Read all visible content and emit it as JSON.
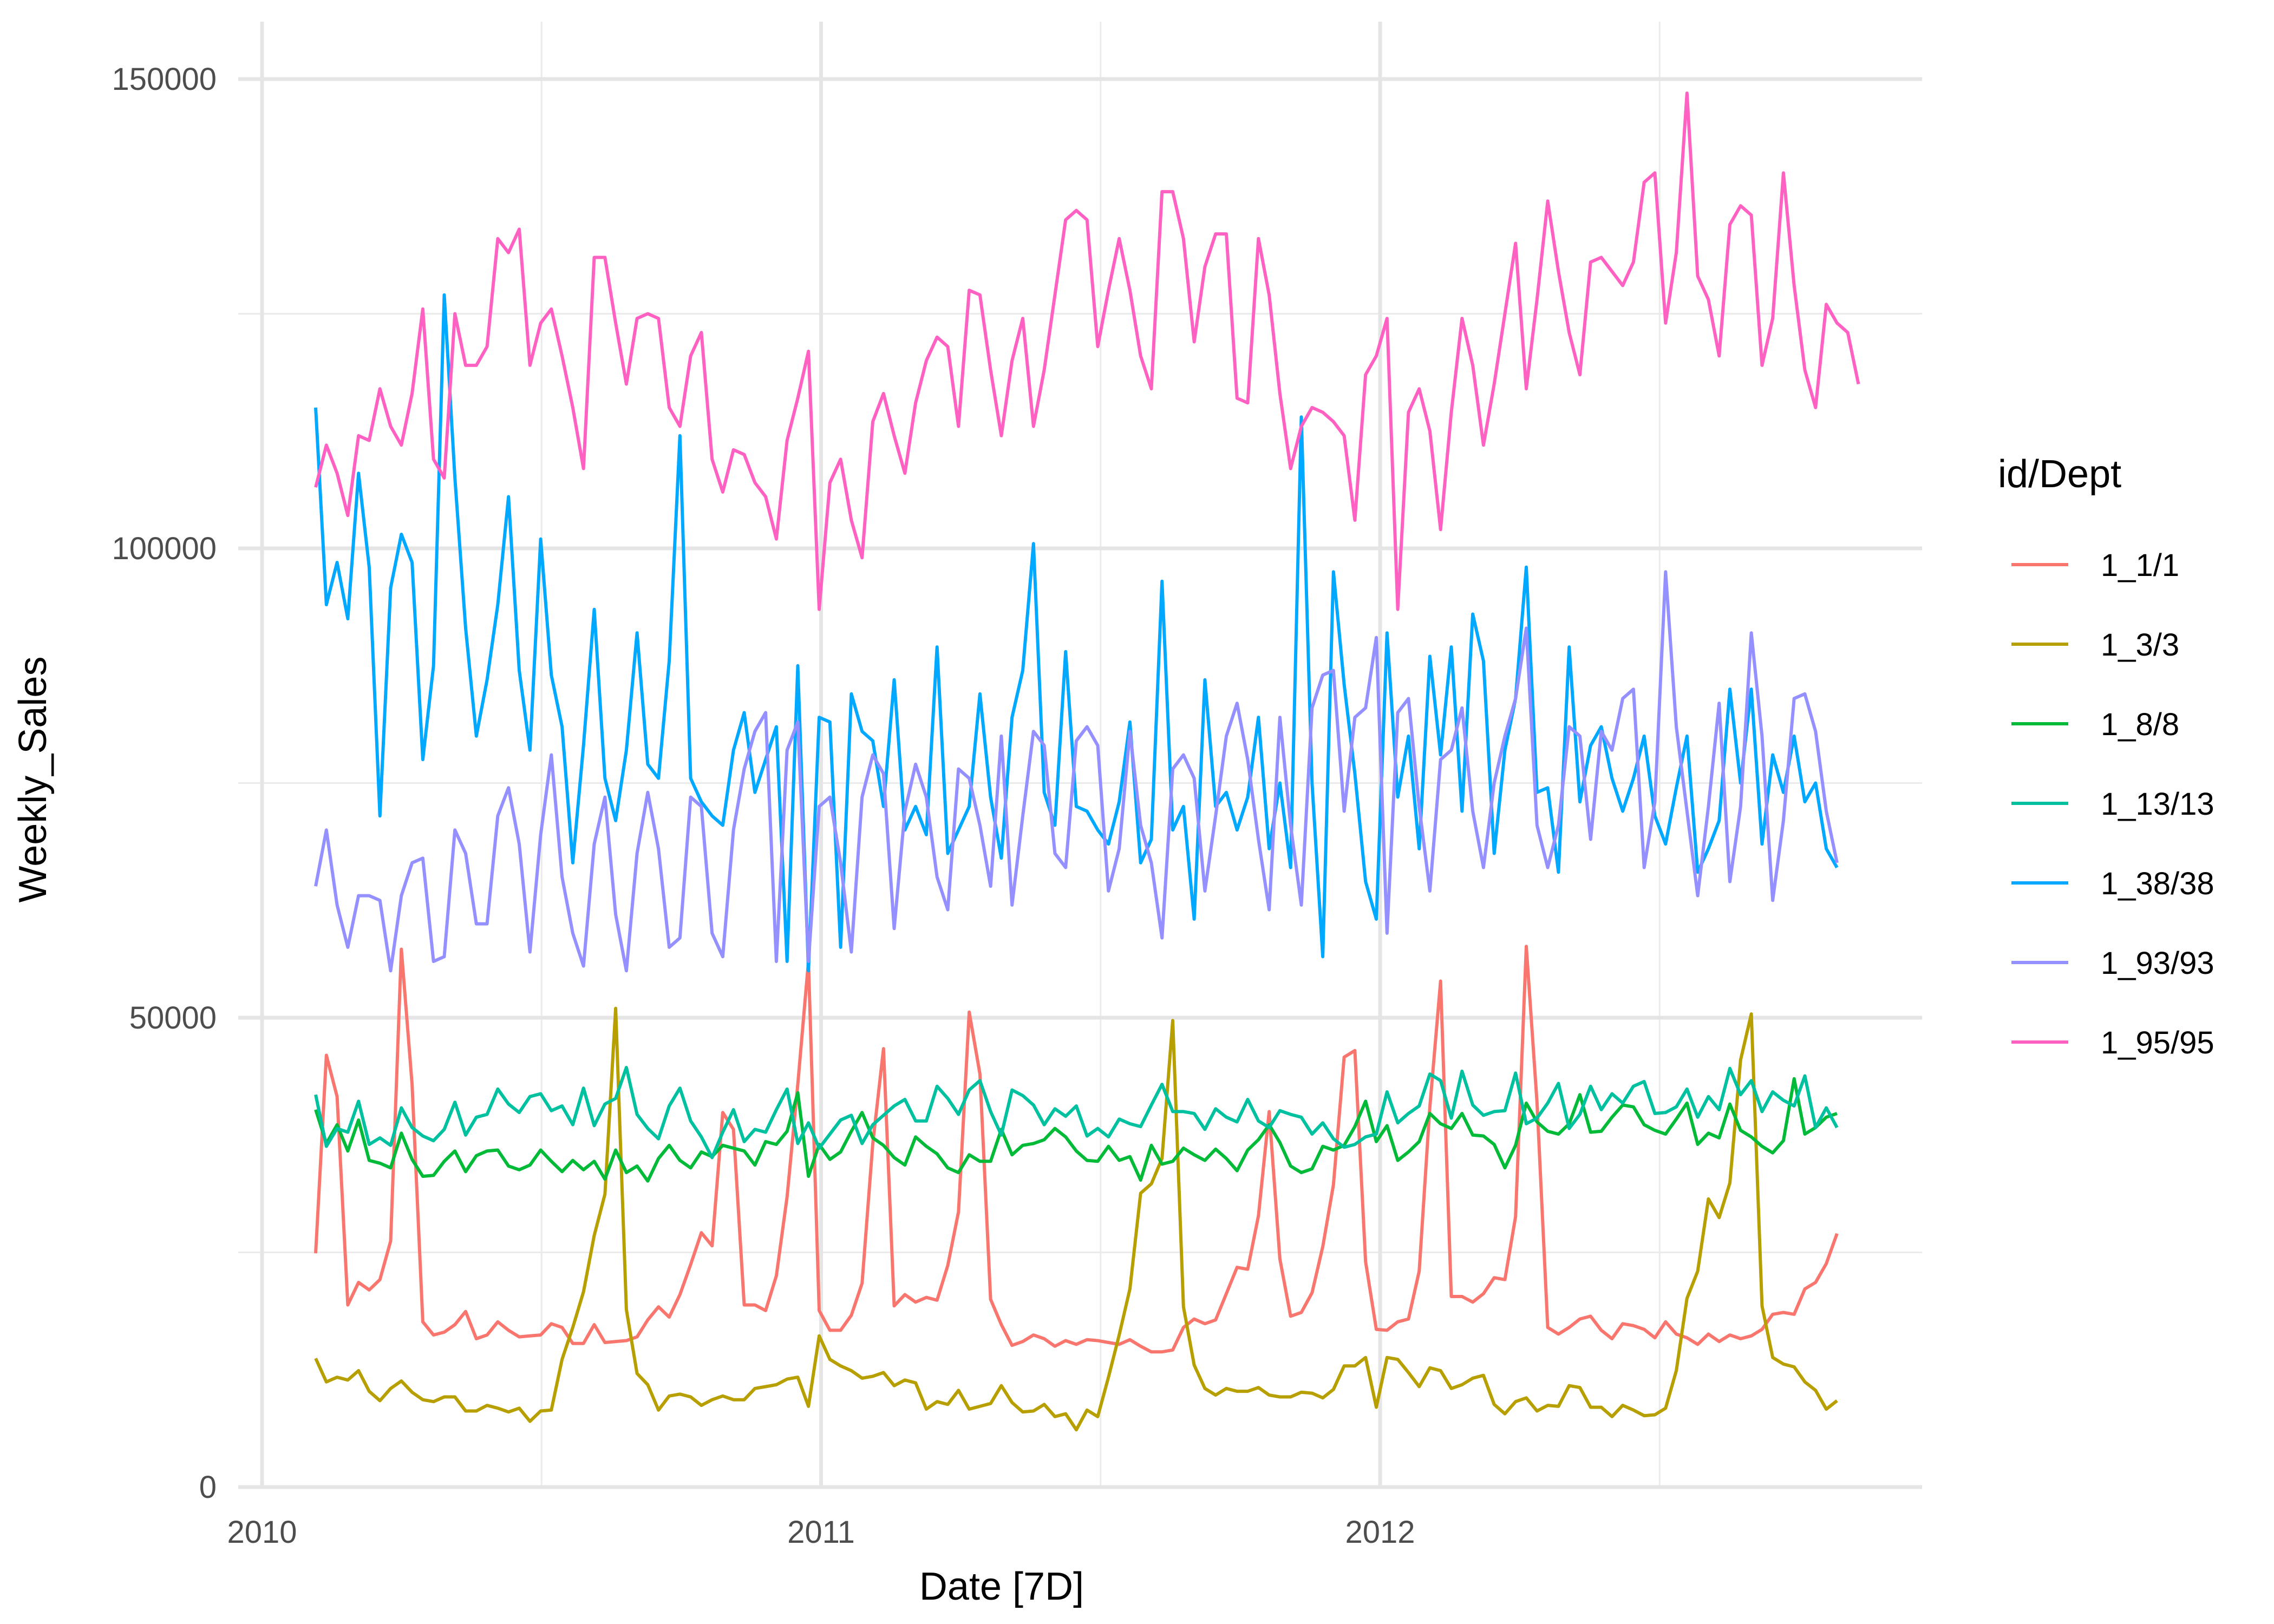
{
  "chart_data": {
    "type": "line",
    "title": "",
    "xlabel": "Date [7D]",
    "ylabel": "Weekly_Sales",
    "x_start": "2010-02-05",
    "x_interval_days": 7,
    "xlim": [
      2010.0,
      2012.93
    ],
    "ylim": [
      0,
      150000
    ],
    "x_ticks": [
      {
        "value": 2010,
        "label": "2010"
      },
      {
        "value": 2011,
        "label": "2011"
      },
      {
        "value": 2012,
        "label": "2012"
      }
    ],
    "y_ticks": [
      {
        "value": 0,
        "label": "0"
      },
      {
        "value": 50000,
        "label": "50000"
      },
      {
        "value": 100000,
        "label": "100000"
      },
      {
        "value": 150000,
        "label": "150000"
      }
    ],
    "grid": true,
    "legend": {
      "title": "id/Dept",
      "position": "right"
    },
    "series": [
      {
        "name": "1_1/1",
        "color": "#F8766D",
        "values": [
          24900,
          46000,
          41600,
          19400,
          21800,
          21000,
          22100,
          26200,
          57300,
          42900,
          17600,
          16200,
          16500,
          17300,
          18700,
          15800,
          16200,
          17600,
          16700,
          16000,
          16100,
          16200,
          17400,
          17000,
          15300,
          15300,
          17300,
          15400,
          15500,
          15600,
          16000,
          17800,
          19200,
          18100,
          20500,
          23700,
          27100,
          25700,
          39900,
          38100,
          19400,
          19400,
          18800,
          22500,
          30900,
          42900,
          56000,
          18800,
          16700,
          16700,
          18300,
          21700,
          36600,
          46700,
          19300,
          20500,
          19700,
          20200,
          19900,
          23600,
          29300,
          50600,
          44000,
          20000,
          17300,
          15100,
          15500,
          16200,
          15800,
          15000,
          15600,
          15200,
          15700,
          15600,
          15400,
          15200,
          15700,
          15000,
          14400,
          14400,
          14600,
          17000,
          17900,
          17400,
          17800,
          20600,
          23400,
          23200,
          28900,
          40000,
          24300,
          18200,
          18600,
          20700,
          25600,
          32200,
          45800,
          46500,
          24000,
          16800,
          16700,
          17600,
          17900,
          23000,
          40500,
          53900,
          20300,
          20300,
          19700,
          20600,
          22300,
          22100,
          28800,
          57600,
          41000,
          17000,
          16300,
          17000,
          17900,
          18200,
          16700,
          15800,
          17400,
          17200,
          16800,
          15900,
          17600,
          16300,
          15900,
          15200,
          16300,
          15500,
          16200,
          15800,
          16100,
          16800,
          18400,
          18600,
          18400,
          21100,
          21800,
          23800,
          27000
        ]
      },
      {
        "name": "1_3/3",
        "color": "#B79F00",
        "values": [
          13700,
          11200,
          11700,
          11400,
          12400,
          10200,
          9200,
          10500,
          11300,
          10100,
          9300,
          9100,
          9600,
          9600,
          8100,
          8100,
          8700,
          8400,
          8000,
          8400,
          7000,
          8100,
          8200,
          13600,
          17000,
          20800,
          26800,
          31200,
          51000,
          18900,
          12100,
          10900,
          8200,
          9700,
          9900,
          9600,
          8700,
          9300,
          9700,
          9300,
          9300,
          10500,
          10700,
          10900,
          11500,
          11700,
          8600,
          16100,
          13600,
          12900,
          12400,
          11600,
          11800,
          12200,
          10800,
          11400,
          11100,
          8300,
          9100,
          8800,
          10300,
          8300,
          8600,
          8900,
          10800,
          9000,
          8000,
          8100,
          8800,
          7500,
          7800,
          6100,
          8200,
          7500,
          11700,
          16200,
          21100,
          31300,
          32300,
          35000,
          49700,
          19200,
          13000,
          10500,
          9800,
          10500,
          10200,
          10200,
          10600,
          9800,
          9600,
          9600,
          10100,
          10000,
          9500,
          10400,
          12900,
          12900,
          13800,
          8500,
          13800,
          13600,
          12200,
          10700,
          12700,
          12400,
          10500,
          10900,
          11600,
          11900,
          8800,
          7800,
          9100,
          9500,
          8100,
          8700,
          8600,
          10800,
          10600,
          8500,
          8500,
          7500,
          8700,
          8200,
          7600,
          7700,
          8400,
          12400,
          20100,
          23000,
          30700,
          28700,
          32400,
          45500,
          50400,
          19300,
          13800,
          13100,
          12800,
          11200,
          10300,
          8300,
          9200
        ]
      },
      {
        "name": "1_8/8",
        "color": "#00BA38",
        "values": [
          40200,
          36600,
          38600,
          35800,
          39100,
          34800,
          34500,
          34000,
          37700,
          34900,
          33100,
          33200,
          34700,
          35800,
          33600,
          35300,
          35800,
          35900,
          34200,
          33800,
          34300,
          35900,
          34700,
          33600,
          34800,
          33800,
          34700,
          32800,
          35900,
          33500,
          34200,
          32600,
          35000,
          36400,
          34800,
          34000,
          35700,
          35200,
          36400,
          36100,
          35800,
          34300,
          36800,
          36500,
          37900,
          42000,
          33100,
          36500,
          34900,
          35700,
          37900,
          39900,
          37200,
          36400,
          35100,
          34300,
          37300,
          36300,
          35500,
          34000,
          33500,
          35400,
          34700,
          34700,
          38100,
          35400,
          36400,
          36600,
          37000,
          38200,
          37300,
          35800,
          34800,
          34700,
          36300,
          34800,
          35200,
          32700,
          36400,
          34400,
          34700,
          36100,
          35400,
          34800,
          36000,
          35000,
          33700,
          35900,
          37000,
          38600,
          36700,
          34200,
          33500,
          33900,
          36300,
          35900,
          36400,
          38400,
          41100,
          36800,
          38500,
          34800,
          35700,
          36800,
          39800,
          38700,
          38200,
          39800,
          37500,
          37400,
          36500,
          34000,
          36400,
          40900,
          38900,
          37900,
          37600,
          38700,
          41800,
          37800,
          37900,
          39400,
          40700,
          40500,
          38600,
          38000,
          37600,
          39200,
          40900,
          36500,
          37700,
          37200,
          40800,
          38000,
          37300,
          36300,
          35600,
          36900,
          43500,
          37600,
          38300,
          39400,
          39800
        ]
      },
      {
        "name": "1_13/13",
        "color": "#00C19F",
        "values": [
          41800,
          36300,
          38200,
          37800,
          41100,
          36500,
          37200,
          36400,
          40400,
          38300,
          37400,
          36900,
          38100,
          41000,
          37500,
          39400,
          39700,
          42400,
          40800,
          39900,
          41600,
          41900,
          40100,
          40600,
          38600,
          42500,
          38500,
          40800,
          41400,
          44700,
          39700,
          38200,
          37100,
          40600,
          42500,
          39000,
          37300,
          35100,
          37800,
          40200,
          36800,
          38100,
          37800,
          40200,
          42400,
          36600,
          38800,
          36100,
          37600,
          39100,
          39600,
          36600,
          38600,
          39600,
          40600,
          41300,
          39000,
          39000,
          42700,
          41400,
          39700,
          42300,
          43300,
          40000,
          37500,
          42300,
          41700,
          40700,
          38600,
          40300,
          39500,
          40600,
          37400,
          38200,
          37300,
          39200,
          38700,
          38400,
          40700,
          42900,
          40000,
          40000,
          39800,
          38100,
          40300,
          39400,
          38900,
          41300,
          39000,
          38300,
          40100,
          39700,
          39400,
          37600,
          38800,
          37100,
          36200,
          36500,
          37300,
          37600,
          42100,
          38800,
          39800,
          40600,
          44000,
          43300,
          39300,
          44300,
          40700,
          39600,
          40000,
          40100,
          44100,
          38700,
          39300,
          40900,
          43000,
          38200,
          39700,
          42700,
          40200,
          41900,
          40900,
          42700,
          43200,
          39800,
          39900,
          40500,
          42400,
          39400,
          41600,
          40200,
          44600,
          41800,
          43300,
          40000,
          42100,
          41200,
          40600,
          43800,
          38300,
          40400,
          38300
        ]
      },
      {
        "name": "1_38/38",
        "color": "#00A9FF",
        "values": [
          115000,
          94000,
          98500,
          92500,
          108000,
          98000,
          71500,
          95800,
          101500,
          98500,
          77500,
          87500,
          127000,
          107500,
          91500,
          80000,
          86000,
          94000,
          105500,
          87000,
          78500,
          101000,
          86500,
          81000,
          66500,
          79000,
          93500,
          75500,
          71000,
          78500,
          91000,
          77000,
          75500,
          88000,
          112000,
          75500,
          73000,
          71500,
          70500,
          78500,
          82500,
          74000,
          77500,
          81000,
          56000,
          87500,
          55000,
          82000,
          81500,
          57500,
          84500,
          80500,
          79500,
          72500,
          86000,
          70000,
          72500,
          69500,
          89500,
          67500,
          70000,
          72500,
          84500,
          73500,
          67000,
          82000,
          87000,
          100500,
          74000,
          70500,
          89000,
          72500,
          72000,
          70000,
          68500,
          73000,
          81500,
          66500,
          69000,
          96500,
          70000,
          72500,
          60500,
          86000,
          72500,
          74000,
          70000,
          73500,
          82000,
          68000,
          75000,
          66000,
          114000,
          75000,
          56500,
          97500,
          85500,
          76000,
          64500,
          60500,
          91000,
          73500,
          80000,
          68000,
          88500,
          78000,
          89500,
          72000,
          93000,
          88000,
          67500,
          78500,
          84000,
          98000,
          74000,
          74500,
          65500,
          89500,
          73000,
          79000,
          81000,
          75500,
          72000,
          75500,
          80000,
          71500,
          68500,
          74500,
          80000,
          65500,
          68000,
          71000,
          85000,
          75000,
          85000,
          68500,
          78000,
          74000,
          80000,
          73000,
          75000,
          68000,
          66000
        ]
      },
      {
        "name": "1_93/93",
        "color": "#9590FF",
        "values": [
          64000,
          70000,
          62000,
          57500,
          63000,
          63000,
          62500,
          55000,
          63000,
          66500,
          67000,
          56000,
          56500,
          70000,
          67500,
          60000,
          60000,
          71500,
          74500,
          68500,
          57000,
          69500,
          78000,
          65000,
          59000,
          55500,
          68500,
          73500,
          61000,
          55000,
          67500,
          74000,
          68000,
          57500,
          58500,
          73500,
          72500,
          59000,
          56500,
          70000,
          76500,
          80500,
          82500,
          56000,
          78500,
          81500,
          56000,
          72500,
          73500,
          66500,
          57000,
          73500,
          78000,
          76000,
          59500,
          72000,
          77000,
          73500,
          65000,
          61500,
          76500,
          75500,
          70500,
          64000,
          80000,
          62000,
          71500,
          80500,
          79000,
          67500,
          66000,
          79500,
          81000,
          79000,
          63500,
          68000,
          80500,
          70500,
          66500,
          58500,
          76500,
          78000,
          75500,
          63500,
          71500,
          80000,
          83500,
          77500,
          69000,
          61500,
          82000,
          70500,
          62000,
          83000,
          86500,
          87000,
          72000,
          82000,
          83000,
          90500,
          59000,
          82500,
          84000,
          72500,
          63500,
          77500,
          78500,
          83000,
          72000,
          66000,
          75000,
          80000,
          84000,
          91500,
          70500,
          66000,
          70500,
          81000,
          80000,
          69000,
          80500,
          78500,
          84000,
          85000,
          66000,
          73000,
          97500,
          81000,
          72000,
          63000,
          72500,
          83500,
          64500,
          72500,
          91000,
          80000,
          62500,
          71000,
          84000,
          84500,
          80500,
          72000,
          66500
        ]
      },
      {
        "name": "1_95/95",
        "color": "#FF61C3",
        "values": [
          106500,
          111000,
          108000,
          103500,
          112000,
          111500,
          117000,
          113000,
          111000,
          116500,
          125500,
          109500,
          107500,
          125000,
          119500,
          119500,
          121500,
          133000,
          131500,
          134000,
          119500,
          124000,
          125500,
          120500,
          115000,
          108500,
          131000,
          131000,
          124000,
          117500,
          124500,
          125000,
          124500,
          115000,
          113000,
          120500,
          123000,
          109500,
          106000,
          110500,
          110000,
          107000,
          105500,
          101000,
          111500,
          116000,
          121000,
          93500,
          107000,
          109500,
          103000,
          99000,
          113500,
          116500,
          112000,
          108000,
          115500,
          120000,
          122500,
          121500,
          113000,
          127500,
          127000,
          119000,
          112000,
          120000,
          124500,
          113000,
          119000,
          127000,
          135000,
          136000,
          135000,
          121500,
          127500,
          133000,
          127500,
          120500,
          117000,
          138000,
          138000,
          133000,
          122000,
          130000,
          133500,
          133500,
          116000,
          115500,
          133000,
          127000,
          116500,
          108500,
          113000,
          115000,
          114500,
          113500,
          112000,
          103000,
          118500,
          120500,
          124500,
          93500,
          114500,
          117000,
          112500,
          102000,
          114500,
          124500,
          119500,
          111000,
          117500,
          125000,
          132500,
          117000,
          126500,
          137000,
          129500,
          123000,
          118500,
          130500,
          131000,
          129500,
          128000,
          130500,
          139000,
          140000,
          124000,
          131500,
          148500,
          129000,
          126500,
          120500,
          134500,
          136500,
          135500,
          119500,
          124500,
          140000,
          128000,
          119000,
          115000,
          126000,
          124000,
          123000,
          117500
        ]
      }
    ]
  }
}
